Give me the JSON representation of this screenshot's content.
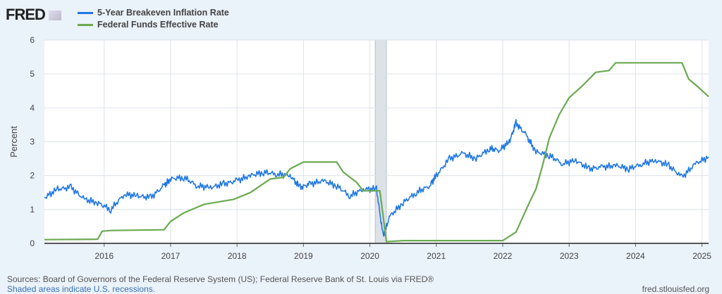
{
  "header": {
    "logo": "FRED",
    "logo_icon": "chart-line-icon"
  },
  "footer": {
    "sources": "Sources: Board of Governors of the Federal Reserve System (US); Federal Reserve Bank of St. Louis via FRED®",
    "recessions_note": "Shaded areas indicate U.S. recessions.",
    "site": "fred.stlouisfed.org"
  },
  "chart_data": {
    "type": "line",
    "ylabel": "Percent",
    "xlabel": "",
    "ylim": [
      0,
      6
    ],
    "xlim": [
      2015.1,
      2025.1
    ],
    "yticks": [
      "0",
      "1",
      "2",
      "3",
      "4",
      "5",
      "6"
    ],
    "xticks": [
      "2016",
      "2017",
      "2018",
      "2019",
      "2020",
      "2021",
      "2022",
      "2023",
      "2024",
      "2025"
    ],
    "grid": true,
    "legend_placement": "top-left",
    "recessions": [
      [
        2020.08,
        2020.25
      ]
    ],
    "series": [
      {
        "name": "5-Year Breakeven Inflation Rate",
        "color": "#1f77e4",
        "x": [
          2015.1,
          2015.3,
          2015.5,
          2015.7,
          2015.9,
          2016.1,
          2016.3,
          2016.5,
          2016.7,
          2016.9,
          2017.0,
          2017.2,
          2017.4,
          2017.6,
          2017.8,
          2018.0,
          2018.2,
          2018.4,
          2018.6,
          2018.8,
          2018.95,
          2019.1,
          2019.3,
          2019.5,
          2019.7,
          2019.9,
          2020.1,
          2020.2,
          2020.3,
          2020.5,
          2020.7,
          2020.9,
          2021.0,
          2021.2,
          2021.4,
          2021.6,
          2021.8,
          2021.95,
          2022.1,
          2022.2,
          2022.35,
          2022.5,
          2022.7,
          2022.9,
          2023.1,
          2023.3,
          2023.5,
          2023.7,
          2023.9,
          2024.1,
          2024.3,
          2024.5,
          2024.7,
          2024.9,
          2025.1
        ],
        "y": [
          1.35,
          1.6,
          1.65,
          1.3,
          1.2,
          1.0,
          1.45,
          1.4,
          1.35,
          1.7,
          1.9,
          1.95,
          1.7,
          1.65,
          1.75,
          1.85,
          2.0,
          2.1,
          2.05,
          2.0,
          1.65,
          1.75,
          1.85,
          1.7,
          1.4,
          1.6,
          1.6,
          0.2,
          0.8,
          1.2,
          1.5,
          1.7,
          2.0,
          2.5,
          2.65,
          2.5,
          2.8,
          2.75,
          3.0,
          3.55,
          3.2,
          2.7,
          2.6,
          2.35,
          2.45,
          2.2,
          2.25,
          2.3,
          2.2,
          2.35,
          2.45,
          2.3,
          1.95,
          2.35,
          2.55
        ]
      },
      {
        "name": "Federal Funds Effective Rate",
        "color": "#6aaa50",
        "x": [
          2015.1,
          2015.9,
          2015.97,
          2016.1,
          2016.9,
          2017.0,
          2017.2,
          2017.5,
          2017.95,
          2018.2,
          2018.5,
          2018.7,
          2018.8,
          2019.0,
          2019.5,
          2019.6,
          2019.8,
          2019.9,
          2020.15,
          2020.25,
          2020.5,
          2021.0,
          2021.5,
          2022.0,
          2022.2,
          2022.4,
          2022.5,
          2022.6,
          2022.7,
          2022.85,
          2023.0,
          2023.2,
          2023.4,
          2023.6,
          2023.7,
          2024.7,
          2024.8,
          2024.95,
          2025.1
        ],
        "y": [
          0.11,
          0.12,
          0.36,
          0.38,
          0.4,
          0.65,
          0.9,
          1.15,
          1.3,
          1.5,
          1.9,
          1.95,
          2.2,
          2.4,
          2.4,
          2.1,
          1.8,
          1.55,
          1.55,
          0.05,
          0.08,
          0.08,
          0.08,
          0.08,
          0.33,
          1.2,
          1.6,
          2.3,
          3.1,
          3.8,
          4.3,
          4.65,
          5.05,
          5.1,
          5.33,
          5.33,
          4.85,
          4.6,
          4.33
        ]
      }
    ]
  }
}
